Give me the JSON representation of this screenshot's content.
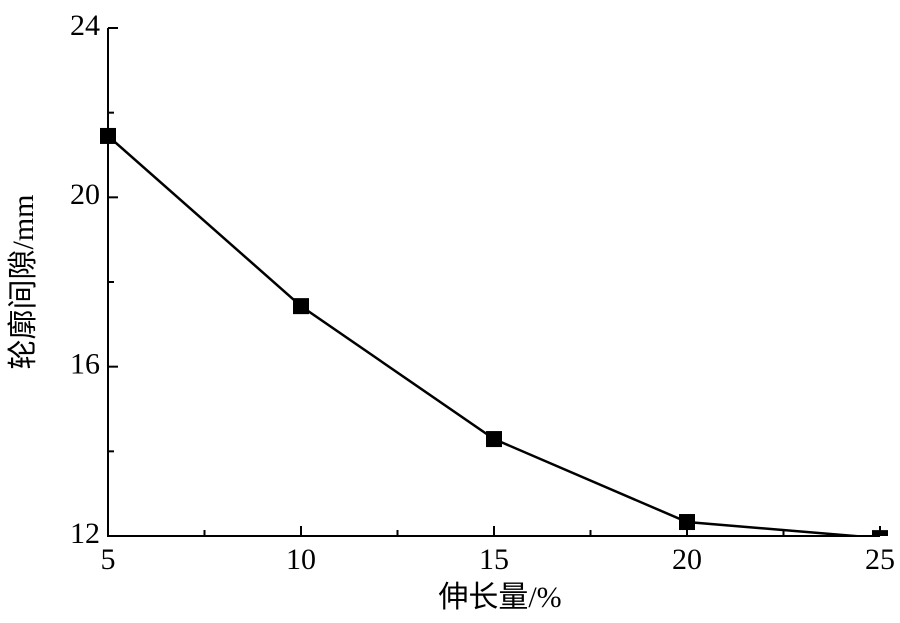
{
  "chart_data": {
    "type": "line",
    "x_label": "伸长量/%",
    "y_label": "轮廓间隙/mm",
    "x": [
      5,
      10,
      15,
      20,
      25
    ],
    "series": [
      {
        "name": "轮廓间隙",
        "color": "#000000",
        "values": [
          21.45,
          17.43,
          14.29,
          12.33,
          11.95
        ]
      }
    ],
    "xlim": [
      5,
      25
    ],
    "xticks": [
      5,
      10,
      15,
      20,
      25
    ],
    "ylim": [
      12,
      24
    ],
    "yticks": [
      12,
      16,
      20,
      24
    ],
    "grid": false
  }
}
